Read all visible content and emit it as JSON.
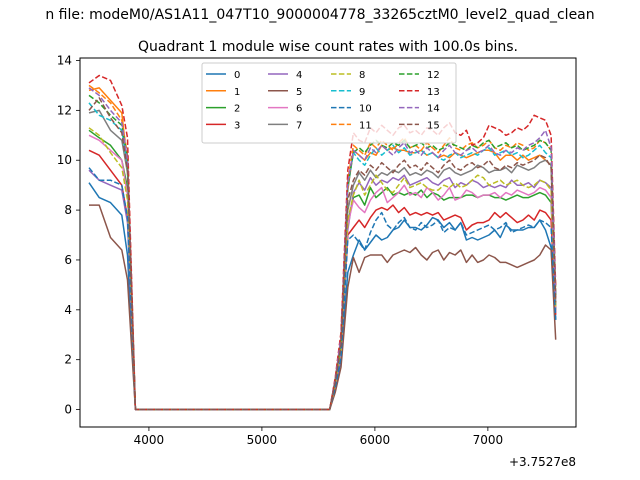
{
  "figure": {
    "suptitle": "n file: modeM0/AS1A11_047T10_9000004778_33265cztM0_level2_quad_clean",
    "offset_label": "+3.7527e8"
  },
  "chart_data": {
    "type": "line",
    "title": "Quadrant 1 module wise count rates with 100.0s bins.",
    "xlabel": "",
    "ylabel": "",
    "xlim": [
      3390,
      7780
    ],
    "ylim": [
      -0.7,
      14.1
    ],
    "xticks": [
      4000,
      5000,
      6000,
      7000
    ],
    "yticks": [
      0,
      2,
      4,
      6,
      8,
      10,
      12,
      14
    ],
    "legend_position": "upper center",
    "legend_columns": 4,
    "x": [
      3470,
      3560,
      3660,
      3760,
      3810,
      3880,
      4000,
      4100,
      4200,
      4300,
      4400,
      4500,
      4600,
      4700,
      4800,
      4900,
      5000,
      5100,
      5200,
      5300,
      5400,
      5500,
      5600,
      5650,
      5700,
      5760,
      5810,
      5860,
      5910,
      5960,
      6010,
      6060,
      6110,
      6160,
      6210,
      6260,
      6310,
      6360,
      6410,
      6460,
      6510,
      6560,
      6610,
      6660,
      6710,
      6760,
      6810,
      6860,
      6910,
      6960,
      7010,
      7060,
      7110,
      7160,
      7210,
      7260,
      7310,
      7360,
      7410,
      7460,
      7510,
      7560,
      7600
    ],
    "series": [
      {
        "name": "0",
        "color": "#1f77b4",
        "dash": "solid",
        "values": [
          9.1,
          8.5,
          8.3,
          7.8,
          6.2,
          0,
          0,
          0,
          0,
          0,
          0,
          0,
          0,
          0,
          0,
          0,
          0,
          0,
          0,
          0,
          0,
          0,
          0,
          0.8,
          2.0,
          5.5,
          6.2,
          6.8,
          6.4,
          6.7,
          7.0,
          6.8,
          6.9,
          7.2,
          7.3,
          7.6,
          7.3,
          7.3,
          7.2,
          7.4,
          7.7,
          7.6,
          7.3,
          7.5,
          7.2,
          7.5,
          6.8,
          6.9,
          6.8,
          6.9,
          7.0,
          7.2,
          6.9,
          7.4,
          7.2,
          7.2,
          7.2,
          7.3,
          7.3,
          7.6,
          7.2,
          6.5,
          3.6
        ]
      },
      {
        "name": "1",
        "color": "#ff7f0e",
        "dash": "solid",
        "values": [
          12.8,
          12.9,
          12.4,
          11.9,
          9.8,
          0,
          0,
          0,
          0,
          0,
          0,
          0,
          0,
          0,
          0,
          0,
          0,
          0,
          0,
          0,
          0,
          0,
          0,
          1.2,
          2.8,
          8.8,
          10.4,
          10.2,
          10.0,
          10.3,
          10.2,
          10.6,
          10.4,
          10.5,
          10.4,
          10.4,
          10.3,
          10.3,
          10.4,
          10.2,
          10.3,
          10.1,
          10.2,
          10.1,
          10.3,
          10.2,
          10.1,
          10.2,
          10.3,
          10.4,
          10.4,
          10.3,
          10.0,
          10.2,
          10.2,
          10.0,
          10.2,
          10.0,
          10.1,
          10.2,
          10.0,
          9.8,
          4.5
        ]
      },
      {
        "name": "2",
        "color": "#2ca02c",
        "dash": "solid",
        "values": [
          11.2,
          10.9,
          10.6,
          10.0,
          8.9,
          0,
          0,
          0,
          0,
          0,
          0,
          0,
          0,
          0,
          0,
          0,
          0,
          0,
          0,
          0,
          0,
          0,
          0,
          1.0,
          2.4,
          7.5,
          8.5,
          8.6,
          8.2,
          8.9,
          8.5,
          8.7,
          8.9,
          8.6,
          8.7,
          8.6,
          8.7,
          8.6,
          8.8,
          8.5,
          8.7,
          8.6,
          8.4,
          8.5,
          8.5,
          8.5,
          8.6,
          8.6,
          8.5,
          8.6,
          8.6,
          8.5,
          8.5,
          8.4,
          8.5,
          8.6,
          8.5,
          8.5,
          8.6,
          8.7,
          8.6,
          8.3,
          4.0
        ]
      },
      {
        "name": "3",
        "color": "#d62728",
        "dash": "solid",
        "values": [
          10.4,
          10.2,
          9.6,
          9.0,
          7.7,
          0,
          0,
          0,
          0,
          0,
          0,
          0,
          0,
          0,
          0,
          0,
          0,
          0,
          0,
          0,
          0,
          0,
          0,
          0.9,
          2.2,
          7.0,
          7.3,
          7.6,
          7.3,
          7.7,
          8.0,
          8.1,
          8.0,
          8.2,
          7.9,
          8.1,
          7.8,
          7.9,
          7.8,
          7.9,
          7.8,
          7.9,
          7.6,
          7.7,
          7.8,
          7.7,
          7.2,
          7.4,
          7.5,
          7.5,
          7.6,
          7.9,
          7.7,
          7.9,
          7.7,
          7.5,
          7.6,
          7.8,
          7.6,
          8.0,
          7.9,
          7.6,
          3.8
        ]
      },
      {
        "name": "4",
        "color": "#9467bd",
        "dash": "solid",
        "values": [
          9.6,
          9.2,
          9.0,
          8.8,
          7.5,
          0,
          0,
          0,
          0,
          0,
          0,
          0,
          0,
          0,
          0,
          0,
          0,
          0,
          0,
          0,
          0,
          0,
          0,
          0.9,
          2.1,
          7.2,
          8.7,
          9.1,
          8.8,
          9.3,
          9.0,
          9.2,
          9.1,
          9.3,
          9.2,
          9.4,
          9.0,
          9.1,
          9.2,
          9.3,
          9.1,
          9.0,
          9.2,
          9.3,
          8.9,
          9.1,
          9.0,
          9.2,
          9.1,
          8.9,
          9.0,
          8.9,
          9.0,
          8.9,
          9.2,
          9.0,
          9.0,
          9.1,
          8.9,
          9.2,
          9.1,
          8.9,
          3.9
        ]
      },
      {
        "name": "5",
        "color": "#8c564b",
        "dash": "solid",
        "values": [
          8.2,
          8.2,
          6.9,
          6.4,
          5.2,
          0,
          0,
          0,
          0,
          0,
          0,
          0,
          0,
          0,
          0,
          0,
          0,
          0,
          0,
          0,
          0,
          0,
          0,
          0.7,
          1.7,
          4.9,
          6.1,
          5.5,
          6.1,
          6.2,
          6.2,
          6.2,
          5.9,
          6.2,
          6.3,
          6.4,
          6.3,
          6.5,
          6.2,
          6.0,
          6.3,
          6.4,
          6.0,
          6.3,
          6.2,
          6.4,
          5.9,
          6.2,
          5.9,
          6.0,
          6.2,
          6.1,
          5.9,
          5.9,
          5.8,
          5.7,
          5.8,
          5.9,
          6.0,
          6.2,
          6.6,
          6.4,
          2.8
        ]
      },
      {
        "name": "6",
        "color": "#e377c2",
        "dash": "solid",
        "values": [
          11.0,
          10.8,
          10.4,
          10.0,
          8.6,
          0,
          0,
          0,
          0,
          0,
          0,
          0,
          0,
          0,
          0,
          0,
          0,
          0,
          0,
          0,
          0,
          0,
          0,
          1.0,
          2.4,
          7.4,
          8.4,
          8.1,
          7.9,
          8.4,
          8.7,
          8.9,
          8.3,
          8.5,
          8.7,
          9.0,
          8.6,
          8.7,
          8.5,
          8.9,
          8.7,
          8.4,
          8.6,
          8.9,
          8.4,
          8.5,
          8.8,
          8.7,
          8.5,
          8.6,
          8.6,
          8.7,
          8.5,
          8.7,
          8.6,
          8.8,
          8.7,
          8.6,
          8.7,
          8.9,
          8.8,
          8.5,
          4.1
        ]
      },
      {
        "name": "7",
        "color": "#7f7f7f",
        "dash": "solid",
        "values": [
          11.9,
          12.0,
          11.2,
          10.8,
          9.5,
          0,
          0,
          0,
          0,
          0,
          0,
          0,
          0,
          0,
          0,
          0,
          0,
          0,
          0,
          0,
          0,
          0,
          0,
          1.1,
          2.6,
          8.0,
          9.0,
          9.5,
          9.2,
          9.6,
          9.3,
          9.5,
          9.4,
          9.6,
          9.5,
          9.7,
          9.4,
          9.5,
          9.4,
          9.6,
          9.5,
          9.3,
          9.6,
          9.7,
          9.5,
          9.4,
          9.5,
          9.6,
          9.8,
          9.7,
          9.5,
          9.6,
          9.6,
          9.7,
          9.5,
          9.8,
          9.7,
          9.6,
          9.7,
          9.9,
          10.0,
          9.8,
          4.2
        ]
      },
      {
        "name": "8",
        "color": "#bcbd22",
        "dash": "dashed",
        "values": [
          11.3,
          11.0,
          10.3,
          9.7,
          8.4,
          0,
          0,
          0,
          0,
          0,
          0,
          0,
          0,
          0,
          0,
          0,
          0,
          0,
          0,
          0,
          0,
          0,
          0,
          1.0,
          2.4,
          7.6,
          8.6,
          9.2,
          8.6,
          9.0,
          9.4,
          9.1,
          8.8,
          8.7,
          9.0,
          9.3,
          8.9,
          9.0,
          9.1,
          8.9,
          8.8,
          8.8,
          9.0,
          8.9,
          9.1,
          8.9,
          9.0,
          9.2,
          9.4,
          9.3,
          9.0,
          9.1,
          9.2,
          9.0,
          9.1,
          9.2,
          9.0,
          8.9,
          9.0,
          9.2,
          9.1,
          8.8,
          4.1
        ]
      },
      {
        "name": "9",
        "color": "#17becf",
        "dash": "dashed",
        "values": [
          12.3,
          11.8,
          11.6,
          11.2,
          9.8,
          0,
          0,
          0,
          0,
          0,
          0,
          0,
          0,
          0,
          0,
          0,
          0,
          0,
          0,
          0,
          0,
          0,
          0,
          1.2,
          2.8,
          8.9,
          10.3,
          10.0,
          9.8,
          10.2,
          10.5,
          10.2,
          10.4,
          10.6,
          10.3,
          10.5,
          10.2,
          10.3,
          10.4,
          10.2,
          10.3,
          10.1,
          10.0,
          10.2,
          10.3,
          10.1,
          10.2,
          10.3,
          10.2,
          10.4,
          10.5,
          10.2,
          10.3,
          10.4,
          10.2,
          10.3,
          10.1,
          10.2,
          10.4,
          10.6,
          10.3,
          10.1,
          4.6
        ]
      },
      {
        "name": "10",
        "color": "#1f77b4",
        "dash": "dashed",
        "values": [
          9.7,
          9.2,
          9.2,
          9.0,
          7.7,
          0,
          0,
          0,
          0,
          0,
          0,
          0,
          0,
          0,
          0,
          0,
          0,
          0,
          0,
          0,
          0,
          0,
          0,
          0.9,
          2.1,
          6.8,
          7.0,
          6.7,
          6.4,
          7.1,
          7.6,
          7.9,
          7.4,
          7.2,
          7.5,
          7.7,
          7.3,
          7.2,
          7.5,
          7.3,
          7.4,
          7.6,
          7.1,
          7.3,
          7.2,
          7.5,
          7.0,
          7.1,
          7.2,
          7.3,
          7.4,
          7.2,
          7.3,
          7.5,
          7.1,
          7.2,
          7.3,
          7.4,
          7.3,
          7.6,
          7.5,
          7.3,
          3.6
        ]
      },
      {
        "name": "11",
        "color": "#ff7f0e",
        "dash": "dashed",
        "values": [
          13.0,
          12.7,
          12.3,
          11.6,
          10.2,
          0,
          0,
          0,
          0,
          0,
          0,
          0,
          0,
          0,
          0,
          0,
          0,
          0,
          0,
          0,
          0,
          0,
          0,
          1.2,
          2.9,
          9.2,
          10.6,
          10.4,
          10.2,
          10.7,
          10.5,
          10.8,
          10.6,
          10.4,
          10.7,
          10.9,
          10.5,
          10.6,
          10.4,
          10.7,
          10.5,
          10.3,
          10.6,
          10.9,
          10.5,
          10.4,
          10.6,
          10.7,
          10.5,
          10.6,
          10.8,
          10.5,
          10.4,
          10.6,
          10.5,
          10.7,
          10.6,
          10.4,
          10.5,
          10.8,
          10.7,
          10.4,
          4.7
        ]
      },
      {
        "name": "12",
        "color": "#2ca02c",
        "dash": "dashed",
        "values": [
          12.6,
          12.3,
          11.8,
          11.4,
          10.1,
          0,
          0,
          0,
          0,
          0,
          0,
          0,
          0,
          0,
          0,
          0,
          0,
          0,
          0,
          0,
          0,
          0,
          0,
          1.2,
          2.8,
          9.0,
          10.3,
          10.5,
          10.3,
          10.6,
          10.8,
          10.6,
          10.5,
          10.7,
          10.6,
          10.8,
          10.5,
          10.6,
          10.7,
          10.5,
          10.6,
          10.4,
          10.5,
          10.7,
          10.6,
          10.5,
          10.4,
          10.6,
          10.5,
          10.7,
          10.8,
          10.5,
          10.6,
          10.7,
          10.5,
          10.6,
          10.4,
          10.5,
          10.6,
          10.8,
          10.7,
          10.4,
          4.6
        ]
      },
      {
        "name": "13",
        "color": "#d62728",
        "dash": "dashed",
        "values": [
          13.1,
          13.4,
          13.2,
          12.2,
          10.9,
          0,
          0,
          0,
          0,
          0,
          0,
          0,
          0,
          0,
          0,
          0,
          0,
          0,
          0,
          0,
          0,
          0,
          0,
          1.3,
          3.1,
          9.6,
          11.1,
          10.8,
          10.7,
          11.3,
          11.1,
          11.4,
          11.2,
          11.0,
          11.3,
          11.4,
          11.1,
          11.2,
          11.0,
          11.3,
          11.2,
          11.0,
          11.3,
          11.5,
          11.1,
          11.0,
          11.2,
          10.6,
          10.7,
          10.9,
          11.4,
          11.3,
          11.2,
          11.0,
          11.1,
          11.3,
          11.2,
          11.4,
          11.8,
          11.7,
          11.6,
          11.0,
          4.9
        ]
      },
      {
        "name": "14",
        "color": "#9467bd",
        "dash": "dashed",
        "values": [
          12.9,
          12.6,
          12.0,
          11.5,
          10.0,
          0,
          0,
          0,
          0,
          0,
          0,
          0,
          0,
          0,
          0,
          0,
          0,
          0,
          0,
          0,
          0,
          0,
          0,
          1.2,
          2.9,
          9.1,
          10.4,
          10.2,
          10.0,
          10.5,
          10.3,
          10.6,
          10.4,
          10.2,
          10.5,
          10.7,
          10.3,
          10.4,
          10.2,
          10.5,
          10.3,
          10.1,
          10.4,
          10.6,
          10.3,
          10.2,
          10.4,
          10.5,
          10.3,
          10.4,
          10.6,
          10.3,
          10.2,
          10.4,
          10.3,
          10.5,
          10.4,
          10.6,
          10.7,
          10.9,
          11.2,
          10.5,
          4.5
        ]
      },
      {
        "name": "15",
        "color": "#8c564b",
        "dash": "dashed",
        "values": [
          12.0,
          12.5,
          11.7,
          11.1,
          9.6,
          0,
          0,
          0,
          0,
          0,
          0,
          0,
          0,
          0,
          0,
          0,
          0,
          0,
          0,
          0,
          0,
          0,
          0,
          1.1,
          2.6,
          8.4,
          9.2,
          9.6,
          9.4,
          9.8,
          9.6,
          9.9,
          9.7,
          9.5,
          9.8,
          10.0,
          9.7,
          9.8,
          9.6,
          9.9,
          9.7,
          9.5,
          9.8,
          10.0,
          9.7,
          9.6,
          9.8,
          9.9,
          9.7,
          9.8,
          10.0,
          9.7,
          9.6,
          9.8,
          9.7,
          9.9,
          9.8,
          9.9,
          10.0,
          10.2,
          10.1,
          9.7,
          4.3
        ]
      }
    ]
  }
}
